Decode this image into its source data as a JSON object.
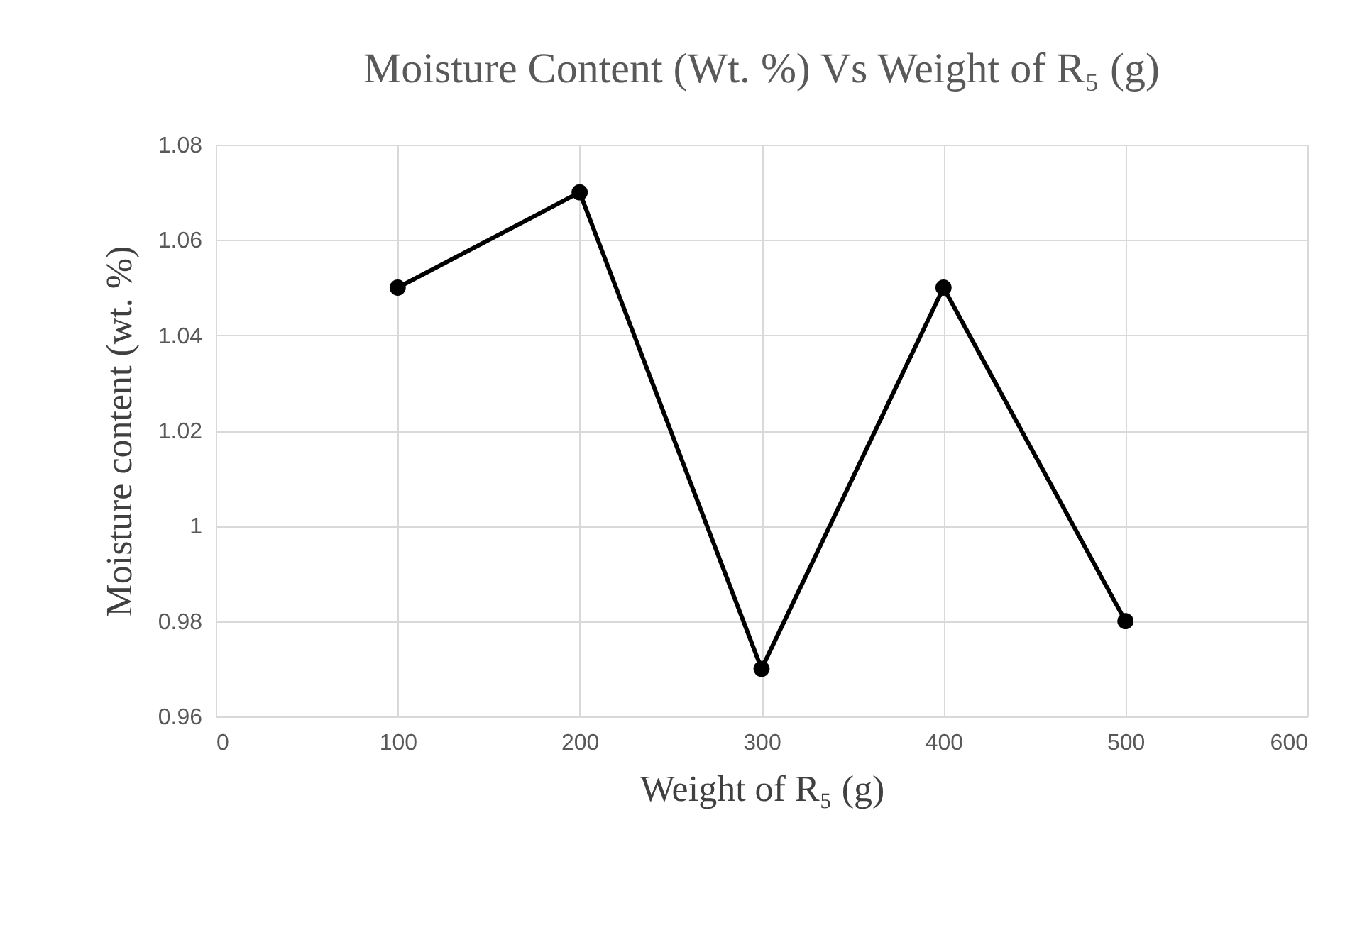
{
  "chart_data": {
    "type": "line",
    "title": "Moisture Content (Wt. %) Vs Weight of R₅ (g)",
    "xlabel": "Weight of R₅ (g)",
    "ylabel": "Moisture content (wt. %)",
    "x": [
      100,
      200,
      300,
      400,
      500
    ],
    "series": [
      {
        "color": "#000000",
        "values": [
          1.05,
          1.07,
          0.97,
          1.05,
          0.98
        ]
      }
    ],
    "xlim": [
      0,
      600
    ],
    "xticks": [
      0,
      100,
      200,
      300,
      400,
      500,
      600
    ],
    "ylim": [
      0.96,
      1.08
    ],
    "yticks": [
      0.96,
      0.98,
      1,
      1.02,
      1.04,
      1.06,
      1.08
    ],
    "grid": true,
    "marker": "circle",
    "line_style": "solid"
  }
}
